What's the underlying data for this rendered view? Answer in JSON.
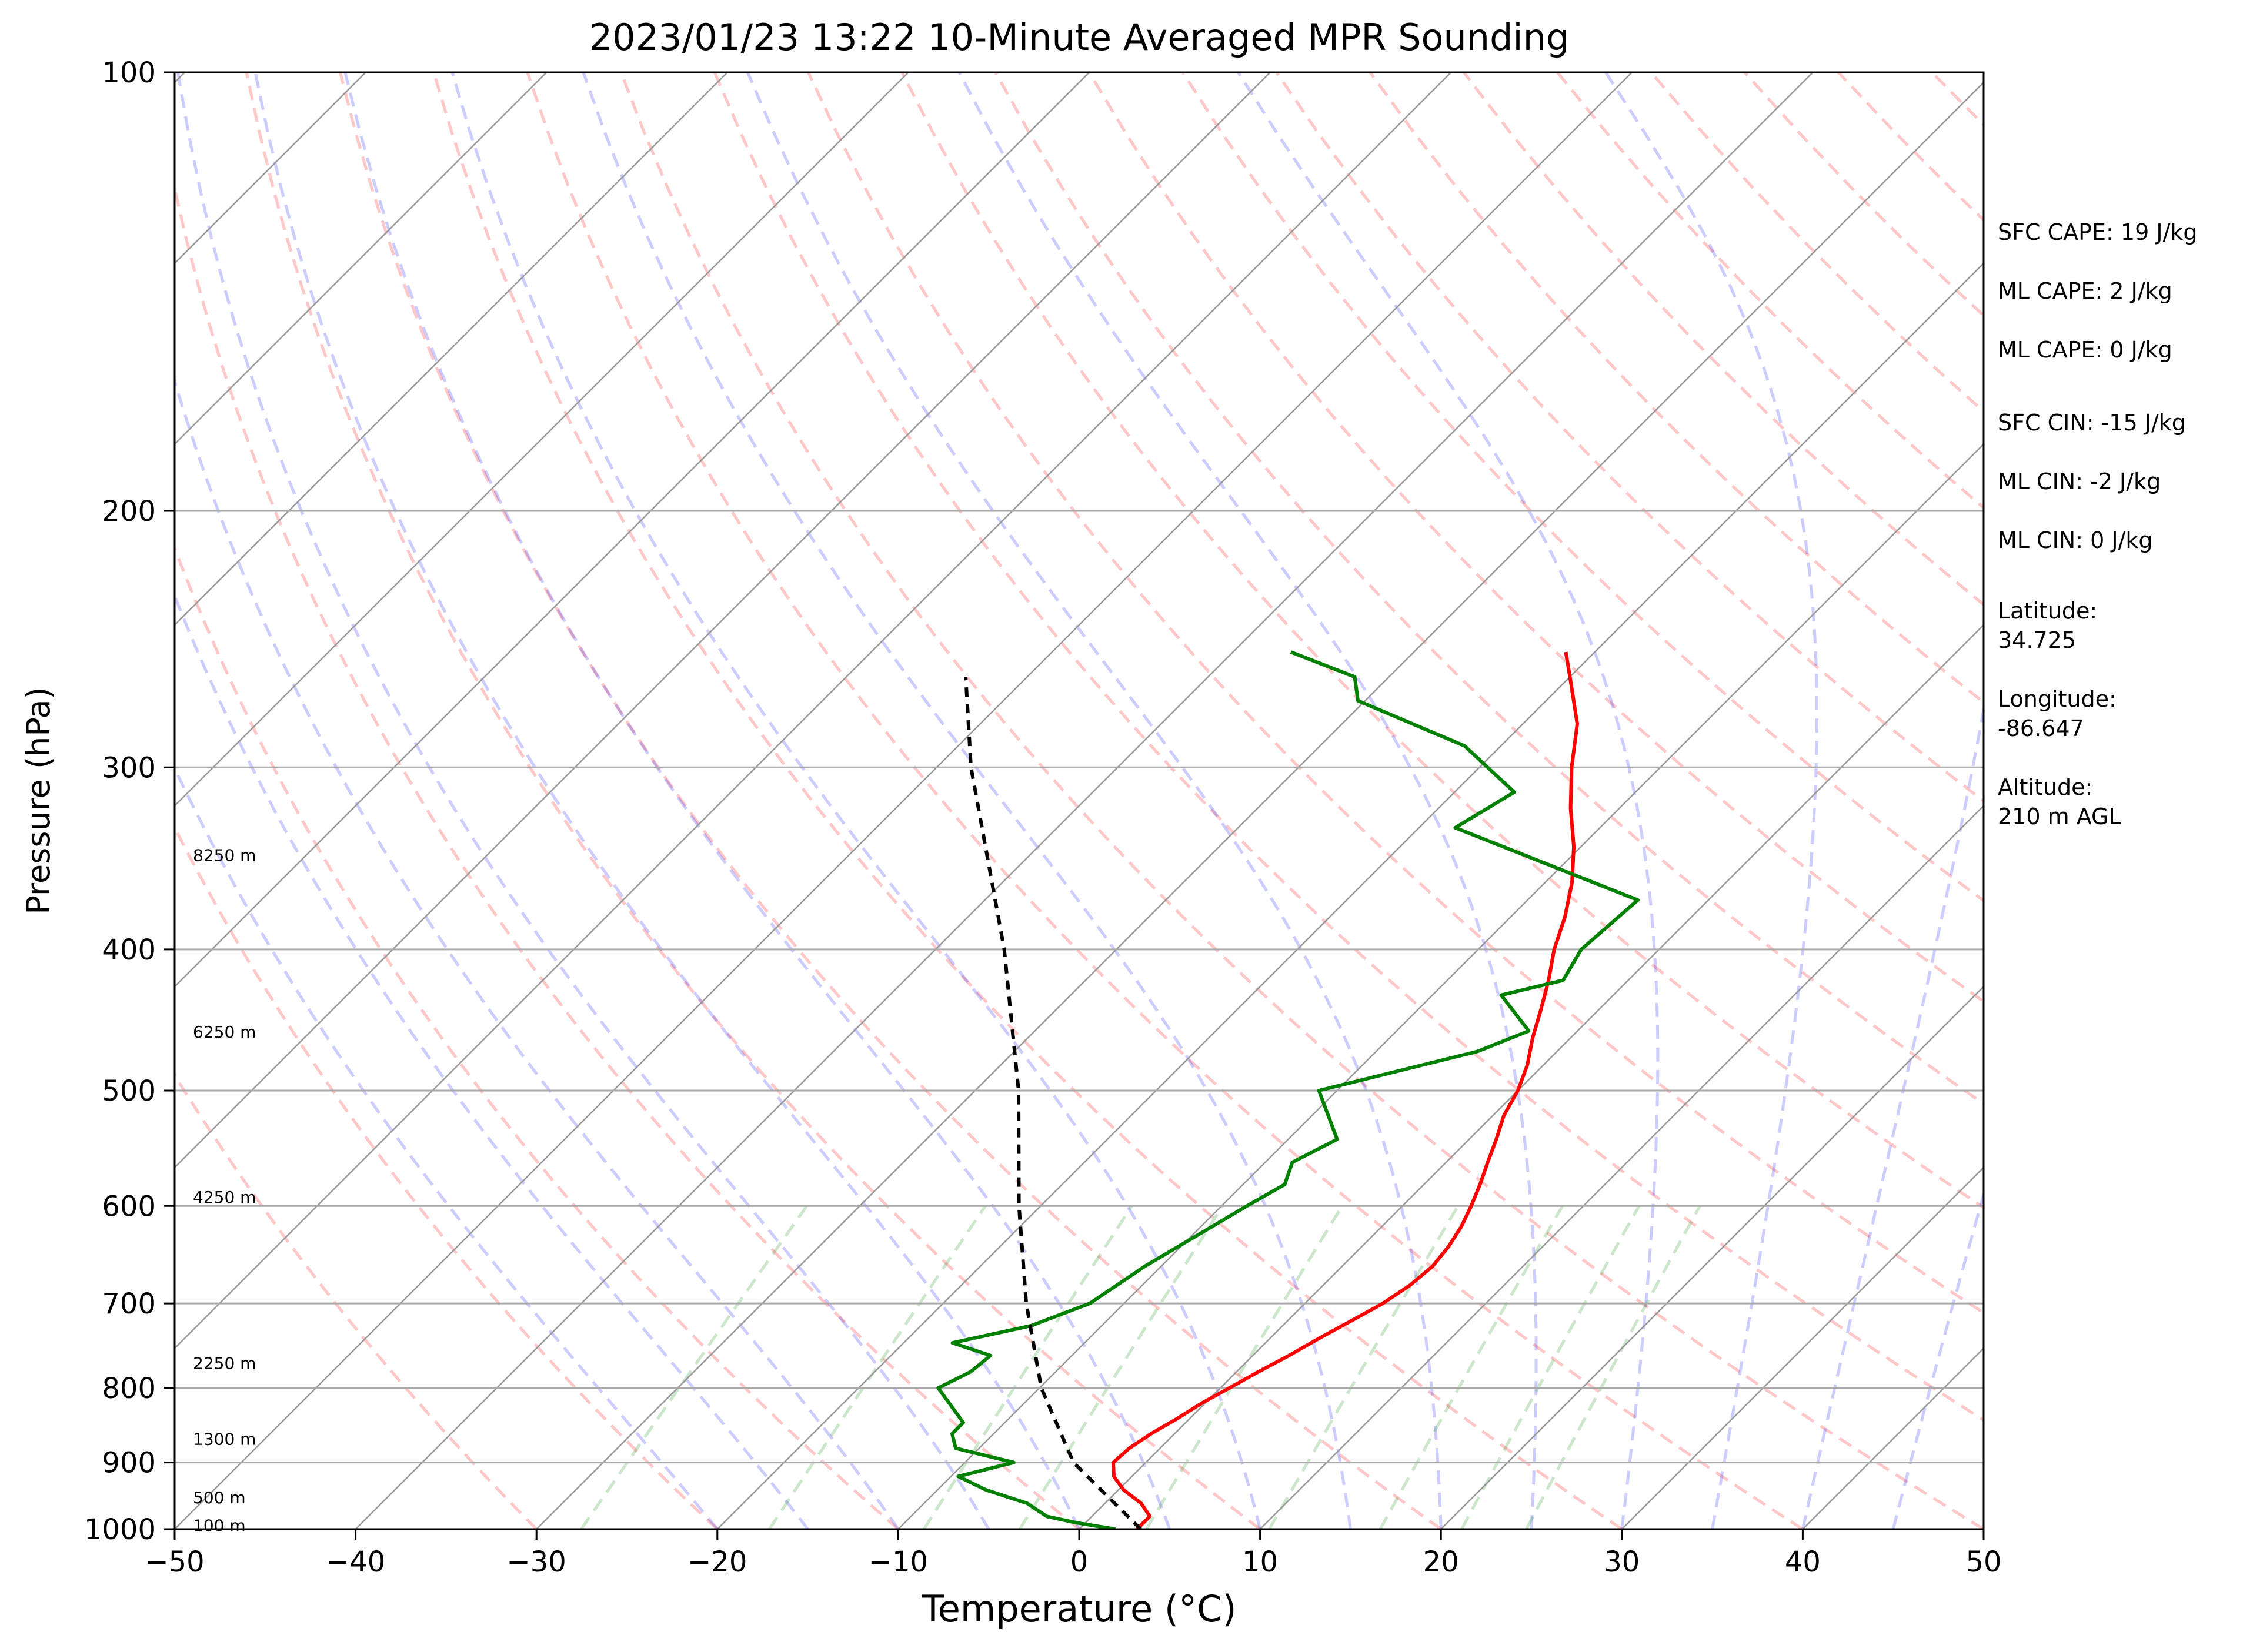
{
  "chart_data": {
    "type": "line",
    "title": "2023/01/23 13:22 10-Minute Averaged MPR Sounding",
    "xlabel": "Temperature (°C)",
    "ylabel": "Pressure (hPa)",
    "xlim": [
      -50,
      50
    ],
    "ylim": [
      1000,
      100
    ],
    "y_scale": "log",
    "skew": true,
    "grid": true,
    "x_ticks": [
      "−50",
      "−40",
      "−30",
      "−20",
      "−10",
      "0",
      "10",
      "20",
      "30",
      "40",
      "50"
    ],
    "y_ticks": [
      "100",
      "200",
      "300",
      "400",
      "500",
      "600",
      "700",
      "800",
      "900",
      "1000"
    ],
    "series": [
      {
        "color": "#ff0000",
        "pressure": [
          1000,
          980,
          960,
          940,
          920,
          900,
          880,
          860,
          840,
          820,
          800,
          780,
          760,
          740,
          720,
          700,
          680,
          660,
          640,
          620,
          600,
          580,
          560,
          540,
          520,
          500,
          480,
          460,
          440,
          420,
          400,
          380,
          360,
          340,
          320,
          300,
          280,
          260,
          250
        ],
        "temperature": [
          3.2,
          3.2,
          2.0,
          0.3,
          -1.0,
          -1.8,
          -1.7,
          -1.3,
          -0.7,
          -0.2,
          0.5,
          1.2,
          2.0,
          2.7,
          3.5,
          4.3,
          4.8,
          5.0,
          4.8,
          4.4,
          3.8,
          3.1,
          2.3,
          1.5,
          0.6,
          0.0,
          -0.9,
          -2.1,
          -3.2,
          -4.4,
          -5.8,
          -7.0,
          -8.5,
          -10.4,
          -12.7,
          -14.9,
          -17.0,
          -20.0,
          -21.6
        ]
      },
      {
        "color": "#008000",
        "pressure": [
          1000,
          990,
          980,
          960,
          940,
          920,
          900,
          880,
          860,
          845,
          800,
          780,
          760,
          745,
          725,
          700,
          660,
          600,
          580,
          560,
          540,
          500,
          470,
          455,
          430,
          420,
          400,
          370,
          330,
          312,
          290,
          270,
          260,
          250
        ],
        "temperature": [
          2.0,
          -0.5,
          -2.5,
          -4.3,
          -7.3,
          -9.6,
          -7.3,
          -11.3,
          -12.3,
          -12.3,
          -15.6,
          -14.7,
          -14.5,
          -17.3,
          -13.9,
          -11.9,
          -10.9,
          -8.6,
          -7.7,
          -8.5,
          -7.3,
          -11.0,
          -4.4,
          -2.7,
          -6.2,
          -3.6,
          -4.3,
          -3.9,
          -18.0,
          -16.7,
          -22.0,
          -30.4,
          -31.9,
          -36.8
        ]
      },
      {
        "color": "#000000",
        "pressure": [
          1000,
          900,
          800,
          700,
          600,
          500,
          400,
          300,
          260
        ],
        "temperature": [
          3.4,
          -4.0,
          -9.9,
          -15.4,
          -21.2,
          -27.6,
          -36.2,
          -48.1,
          -53.4
        ]
      }
    ],
    "height_labels": [
      {
        "text": "100 m",
        "pressure": 995
      },
      {
        "text": "500 m",
        "pressure": 952
      },
      {
        "text": "1300 m",
        "pressure": 868
      },
      {
        "text": "2250 m",
        "pressure": 770
      },
      {
        "text": "4250 m",
        "pressure": 592
      },
      {
        "text": "6250 m",
        "pressure": 456
      },
      {
        "text": "8250 m",
        "pressure": 345
      }
    ],
    "annotations": [
      "SFC CAPE: 19 J/kg",
      "ML CAPE: 2 J/kg",
      "ML CAPE: 0 J/kg",
      "SFC CIN: -15 J/kg",
      "ML CIN: -2 J/kg",
      "ML CIN: 0 J/kg",
      "Latitude:",
      "34.725",
      "Longitude:",
      "-86.647",
      "Altitude:",
      "210 m AGL"
    ]
  }
}
